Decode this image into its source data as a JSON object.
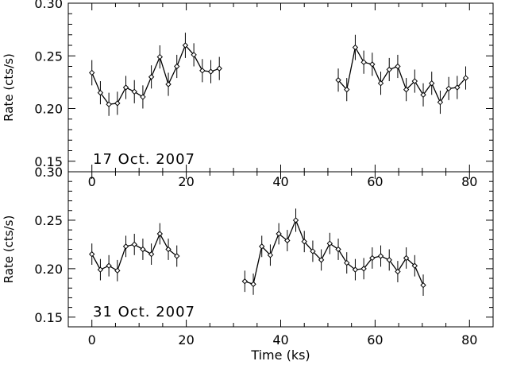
{
  "chart_data": [
    {
      "type": "line",
      "panel_label": "17 Oct. 2007",
      "ylabel": "Rate (cts/s)",
      "xlabel": "",
      "xlim": [
        -5,
        85
      ],
      "ylim": [
        0.14,
        0.3
      ],
      "xticks": [
        0,
        20,
        40,
        60,
        80
      ],
      "yticks": [
        0.15,
        0.2,
        0.25,
        0.3
      ],
      "ytick_labels": [
        "0.15",
        "0.20",
        "0.25",
        "0.30"
      ],
      "series": [
        {
          "x": [
            0.0,
            1.8,
            3.6,
            5.4,
            7.2,
            9.0,
            10.8,
            12.6,
            14.4,
            16.2,
            18.0,
            19.8,
            21.6,
            23.4,
            25.2,
            27.0
          ],
          "y": [
            0.234,
            0.215,
            0.204,
            0.205,
            0.22,
            0.216,
            0.211,
            0.23,
            0.249,
            0.223,
            0.24,
            0.26,
            0.251,
            0.236,
            0.235,
            0.238
          ],
          "err": [
            0.012,
            0.011,
            0.011,
            0.011,
            0.011,
            0.011,
            0.011,
            0.011,
            0.011,
            0.011,
            0.011,
            0.012,
            0.011,
            0.011,
            0.011,
            0.011
          ]
        },
        {
          "x": [
            52.2,
            54.0,
            55.8,
            57.6,
            59.4,
            61.2,
            63.0,
            64.8,
            66.6,
            68.4,
            70.2,
            72.0,
            73.8,
            75.6,
            77.4,
            79.2
          ],
          "y": [
            0.227,
            0.218,
            0.258,
            0.244,
            0.242,
            0.224,
            0.237,
            0.24,
            0.218,
            0.226,
            0.213,
            0.224,
            0.206,
            0.219,
            0.22,
            0.229
          ],
          "err": [
            0.011,
            0.011,
            0.012,
            0.011,
            0.011,
            0.011,
            0.011,
            0.011,
            0.011,
            0.011,
            0.011,
            0.011,
            0.011,
            0.011,
            0.011,
            0.011
          ]
        }
      ]
    },
    {
      "type": "line",
      "panel_label": "31 Oct. 2007",
      "ylabel": "Rate (cts/s)",
      "xlabel": "Time (ks)",
      "xlim": [
        -5,
        85
      ],
      "ylim": [
        0.14,
        0.3
      ],
      "xticks": [
        0,
        20,
        40,
        60,
        80
      ],
      "xtick_labels": [
        "0",
        "20",
        "40",
        "60",
        "80"
      ],
      "yticks": [
        0.15,
        0.2,
        0.25,
        0.3
      ],
      "ytick_labels": [
        "0.15",
        "0.20",
        "0.25",
        "0.30"
      ],
      "series": [
        {
          "x": [
            0.0,
            1.8,
            3.6,
            5.4,
            7.2,
            9.0,
            10.8,
            12.6,
            14.4,
            16.2,
            18.0
          ],
          "y": [
            0.215,
            0.199,
            0.203,
            0.198,
            0.223,
            0.225,
            0.22,
            0.215,
            0.236,
            0.22,
            0.213
          ],
          "err": [
            0.011,
            0.011,
            0.011,
            0.011,
            0.011,
            0.011,
            0.011,
            0.011,
            0.011,
            0.011,
            0.011
          ]
        },
        {
          "x": [
            32.4,
            34.2,
            36.0,
            37.8,
            39.6,
            41.4,
            43.2,
            45.0,
            46.8,
            48.6,
            50.4,
            52.2,
            54.0,
            55.8,
            57.6,
            59.4,
            61.2,
            63.0,
            64.8,
            66.6,
            68.4,
            70.2
          ],
          "y": [
            0.187,
            0.184,
            0.223,
            0.214,
            0.236,
            0.229,
            0.25,
            0.228,
            0.218,
            0.209,
            0.226,
            0.22,
            0.206,
            0.199,
            0.2,
            0.211,
            0.213,
            0.209,
            0.197,
            0.211,
            0.203,
            0.183
          ],
          "err": [
            0.011,
            0.011,
            0.011,
            0.011,
            0.011,
            0.011,
            0.012,
            0.011,
            0.011,
            0.011,
            0.011,
            0.011,
            0.011,
            0.011,
            0.011,
            0.011,
            0.011,
            0.011,
            0.011,
            0.011,
            0.011,
            0.011
          ]
        }
      ]
    }
  ]
}
